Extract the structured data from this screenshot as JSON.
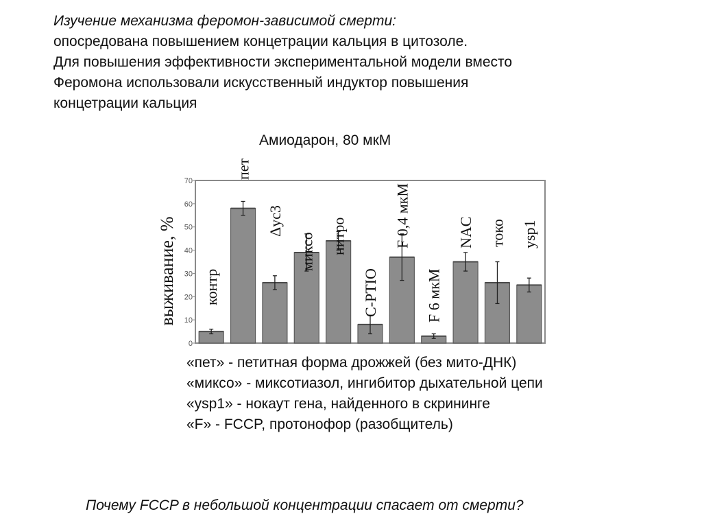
{
  "heading": {
    "line1": "Изучение механизма феромон-зависимой смерти:",
    "line2": "опосредована повышением концетрации кальция в цитозоле.",
    "line3": "Для повышения эффективности экспериментальной модели вместо",
    "line4": "Феромона использовали искусственный индуктор повышения",
    "line5": "концетрации кальция"
  },
  "chart_data": {
    "type": "bar",
    "title": "Амиодарон, 80 мкМ",
    "ylabel": "выживание, %",
    "ylim": [
      0,
      70
    ],
    "yticks": [
      0,
      10,
      20,
      30,
      40,
      50,
      60,
      70
    ],
    "grid": false,
    "bar_color": "#8c8c8c",
    "categories": [
      "контр",
      "пет",
      "Δyc3",
      "миксо",
      "нитро",
      "C-PTIO",
      "F 0,4 мкМ",
      "F 6 мкМ",
      "NAC",
      "токо",
      "ysp1"
    ],
    "values": [
      5,
      58,
      26,
      39,
      44,
      8,
      37,
      3,
      35,
      26,
      25
    ],
    "errors": [
      1,
      3,
      3,
      8,
      4,
      4,
      10,
      1,
      4,
      9,
      3
    ]
  },
  "legend": {
    "line1": "«пет» - петитная форма дрожжей (без мито-ДНК)",
    "line2": "«миксо» - миксотиазол, ингибитор дыхательной цепи",
    "line3": "«ysp1» - нокаут гена, найденного в скрининге",
    "line4": "«F» - FCCP, протонофор (разобщитель)"
  },
  "question": "Почему FCCP в небольшой концентрации спасает от смерти?"
}
